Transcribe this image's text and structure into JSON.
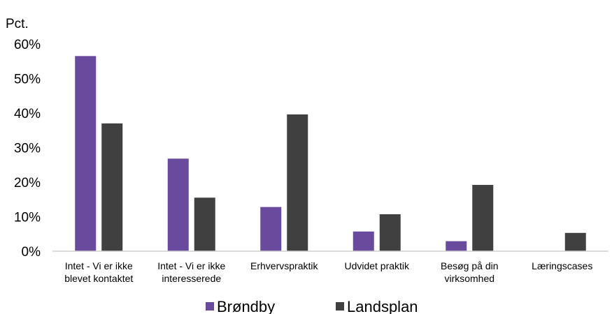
{
  "chart_data": {
    "type": "bar",
    "ylabel": "Pct.",
    "ylim": [
      0,
      60
    ],
    "yticks": [
      "0%",
      "10%",
      "20%",
      "30%",
      "40%",
      "50%",
      "60%"
    ],
    "categories": [
      [
        "Intet - Vi er ikke",
        "blevet kontaktet"
      ],
      [
        "Intet - Vi er ikke",
        "interesserede"
      ],
      [
        "Erhvervspraktik"
      ],
      [
        "Udvidet praktik"
      ],
      [
        "Besøg på din",
        "virksomhed"
      ],
      [
        "Læringscases"
      ]
    ],
    "series": [
      {
        "name": "Brøndby",
        "color": "#6a4a9c",
        "values": [
          56.5,
          26.8,
          12.8,
          5.7,
          2.9,
          0
        ]
      },
      {
        "name": "Landsplan",
        "color": "#404040",
        "values": [
          37.0,
          15.5,
          39.6,
          10.7,
          19.2,
          5.3
        ]
      }
    ],
    "legend": "bottom",
    "grid": false
  }
}
